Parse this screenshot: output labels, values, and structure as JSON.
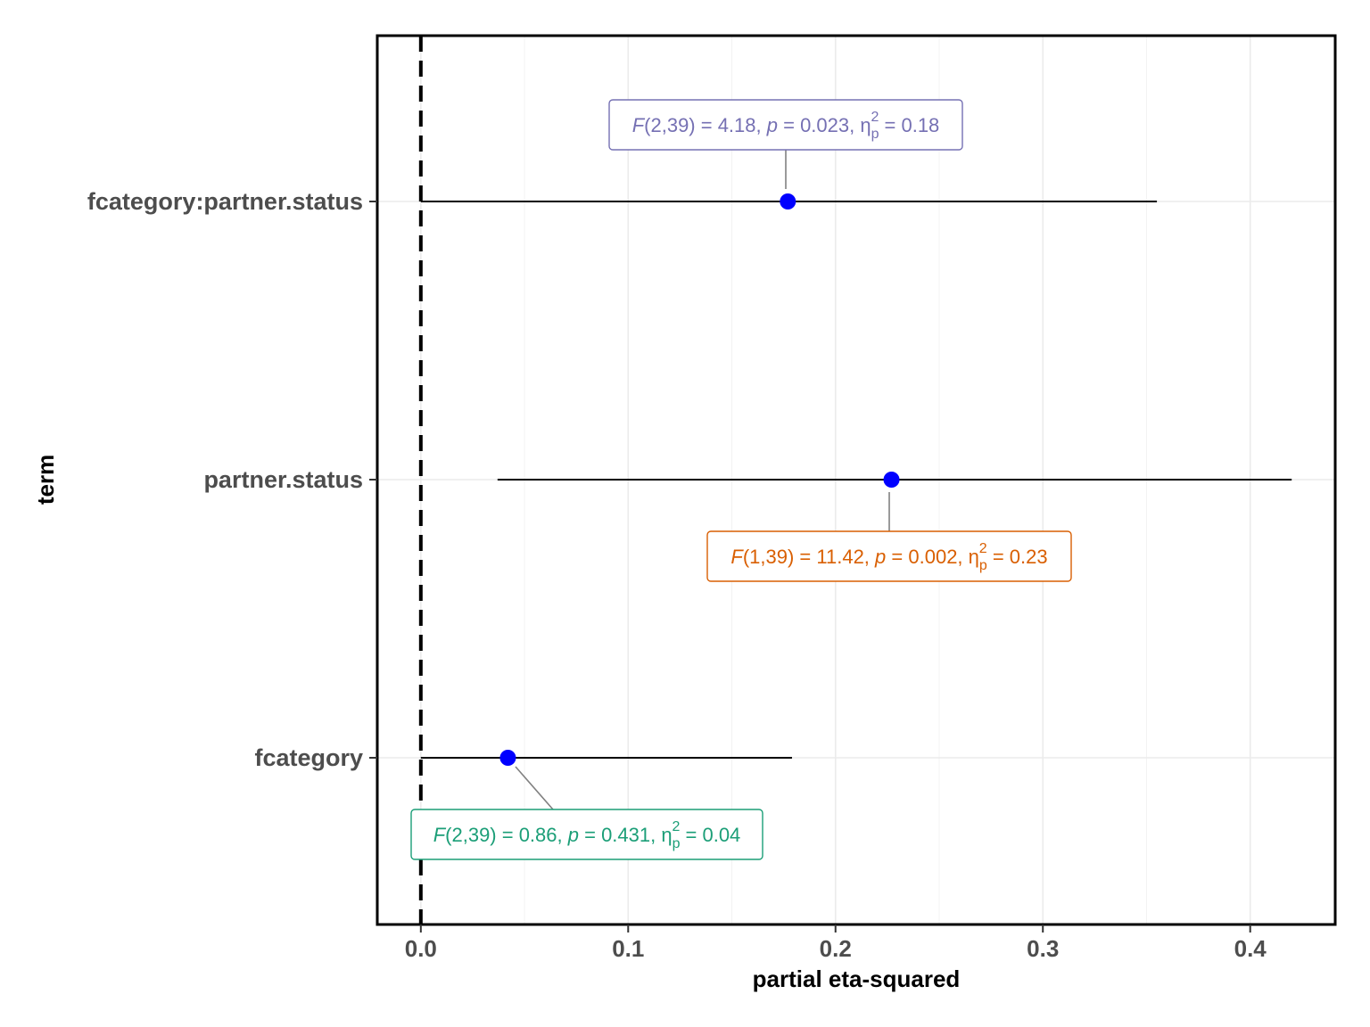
{
  "chart_data": {
    "type": "scatter",
    "xlabel": "partial eta-squared",
    "ylabel": "term",
    "xlim": [
      -0.021,
      0.441
    ],
    "x_ticks": [
      0.0,
      0.1,
      0.2,
      0.3,
      0.4
    ],
    "x_tick_labels": [
      "0.0",
      "0.1",
      "0.2",
      "0.3",
      "0.4"
    ],
    "grid": true,
    "reference_line": {
      "x": 0,
      "style": "dashed"
    },
    "point_color": "#0000FF",
    "terms": [
      {
        "term": "fcategory:partner.status",
        "estimate": 0.177,
        "ci_low": 0.0,
        "ci_high": 0.355,
        "color": "#7570B3",
        "label": {
          "df_num": "2",
          "df_den": "39",
          "statistic": "4.18",
          "p_value": "0.023",
          "effect": "0.18"
        }
      },
      {
        "term": "partner.status",
        "estimate": 0.227,
        "ci_low": 0.037,
        "ci_high": 0.42,
        "color": "#D95F02",
        "label": {
          "df_num": "1",
          "df_den": "39",
          "statistic": "11.42",
          "p_value": "0.002",
          "effect": "0.23"
        }
      },
      {
        "term": "fcategory",
        "estimate": 0.042,
        "ci_low": 0.0,
        "ci_high": 0.179,
        "color": "#1B9E77",
        "label": {
          "df_num": "2",
          "df_den": "39",
          "statistic": "0.86",
          "p_value": "0.431",
          "effect": "0.04"
        }
      }
    ]
  }
}
